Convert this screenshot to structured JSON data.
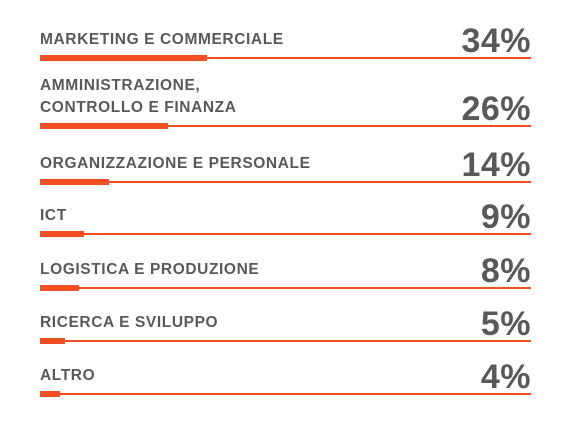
{
  "colors": {
    "accent": "#f04e23",
    "text": "#58595b",
    "background": "#ffffff"
  },
  "chart_data": {
    "type": "bar",
    "orientation": "horizontal",
    "categories": [
      "MARKETING E COMMERCIALE",
      "AMMINISTRAZIONE,\nCONTROLLO E FINANZA",
      "ORGANIZZAZIONE E PERSONALE",
      "ICT",
      "LOGISTICA E PRODUZIONE",
      "RICERCA E SVILUPPO",
      "ALTRO"
    ],
    "values": [
      34,
      26,
      14,
      9,
      8,
      5,
      4
    ],
    "value_labels": [
      "34%",
      "26%",
      "14%",
      "9%",
      "8%",
      "5%",
      "4%"
    ],
    "unit": "%",
    "title": "",
    "xlabel": "",
    "ylabel": "",
    "xlim": [
      0,
      100
    ],
    "grid": false,
    "legend": "none"
  }
}
